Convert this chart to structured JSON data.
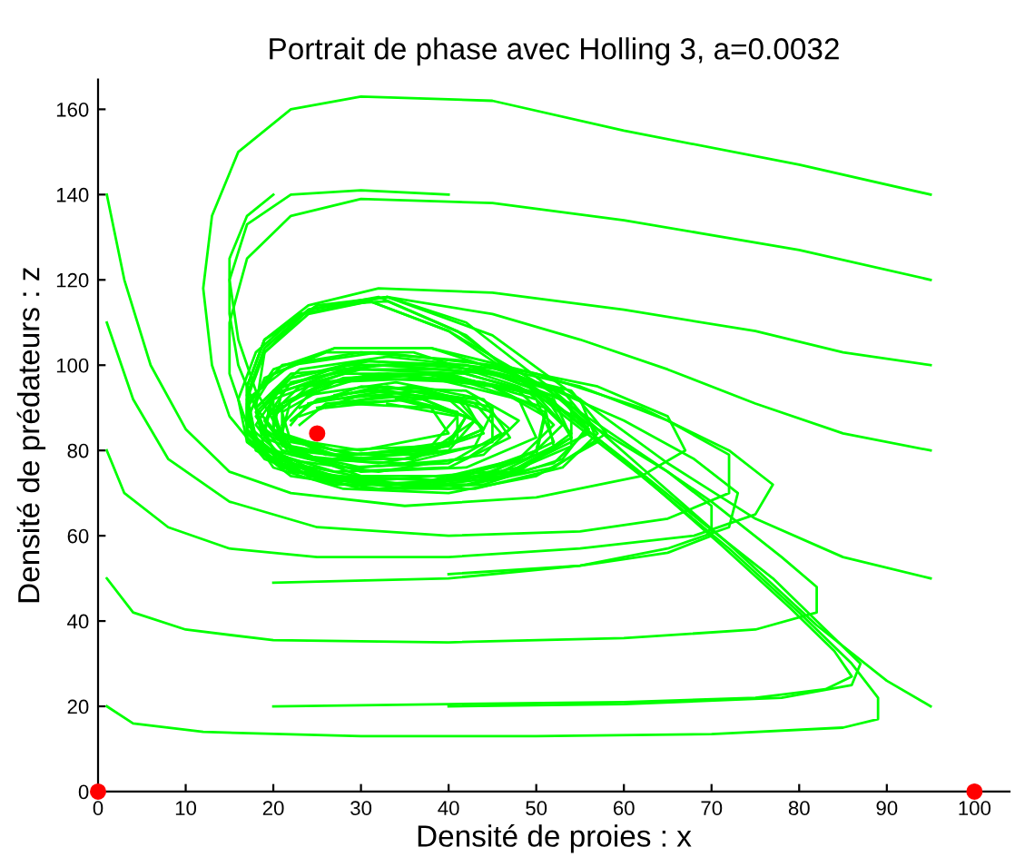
{
  "chart_data": {
    "type": "line",
    "title": "Portrait de phase avec Holling 3, a=0.0032",
    "xlabel": "Densité de proies : x",
    "ylabel": "Densité de prédateurs : z",
    "xlim": [
      0,
      104
    ],
    "ylim": [
      0,
      167
    ],
    "xticks": [
      0,
      10,
      20,
      30,
      40,
      50,
      60,
      70,
      80,
      90,
      100
    ],
    "yticks": [
      0,
      20,
      40,
      60,
      80,
      100,
      120,
      140,
      160
    ],
    "grid": false,
    "legend": false,
    "marker": "none",
    "line_style": "solid",
    "series": [
      {
        "color": "#00ff00",
        "x": [
          95,
          80,
          60,
          45,
          30,
          22,
          16,
          13,
          12,
          13,
          15,
          19,
          27,
          38,
          48,
          56,
          53,
          45,
          33,
          22,
          18,
          19,
          25,
          35,
          44,
          42,
          33,
          24,
          22
        ],
        "values": [
          140,
          147,
          155,
          162,
          163,
          160,
          150,
          135,
          118,
          100,
          88,
          78,
          72,
          72,
          76,
          84,
          92,
          98,
          100,
          98,
          90,
          83,
          78,
          78,
          84,
          91,
          94,
          91,
          86
        ]
      },
      {
        "color": "#00ff00",
        "x": [
          95,
          80,
          60,
          45,
          30,
          22,
          17,
          15,
          15,
          17,
          22,
          32,
          45,
          52,
          50,
          40,
          28,
          20,
          20,
          27,
          38,
          43,
          36,
          26,
          23
        ],
        "values": [
          120,
          127,
          134,
          138,
          139,
          135,
          125,
          110,
          98,
          86,
          77,
          73,
          75,
          82,
          92,
          98,
          98,
          92,
          84,
          79,
          80,
          87,
          93,
          91,
          86
        ]
      },
      {
        "color": "#00ff00",
        "x": [
          40,
          30,
          22,
          17,
          15,
          16,
          18,
          22,
          30,
          42,
          50,
          48,
          38,
          26,
          20,
          21,
          30,
          40,
          38,
          28
        ],
        "values": [
          140,
          141,
          140,
          133,
          120,
          106,
          94,
          80,
          75,
          76,
          83,
          92,
          97,
          96,
          90,
          83,
          80,
          84,
          90,
          91
        ]
      },
      {
        "color": "#00ff00",
        "x": [
          95,
          85,
          75,
          60,
          45,
          32,
          24,
          19,
          17,
          17,
          20,
          28,
          40,
          50,
          57,
          55,
          46,
          33,
          23,
          18,
          19,
          27,
          40,
          47,
          44,
          34,
          24,
          21
        ],
        "values": [
          100,
          103,
          108,
          113,
          117,
          118,
          114,
          106,
          95,
          85,
          76,
          71,
          70,
          74,
          82,
          92,
          99,
          102,
          99,
          90,
          80,
          75,
          76,
          83,
          92,
          96,
          93,
          86
        ]
      },
      {
        "color": "#00ff00",
        "x": [
          95,
          85,
          75,
          65,
          55,
          45,
          33,
          24,
          19,
          17,
          18,
          24,
          35,
          47,
          54,
          51,
          40,
          28,
          20,
          19,
          25,
          36,
          44,
          40,
          30,
          23
        ],
        "values": [
          80,
          84,
          91,
          99,
          106,
          112,
          116,
          113,
          104,
          93,
          82,
          74,
          71,
          74,
          83,
          93,
          99,
          99,
          93,
          84,
          78,
          78,
          85,
          92,
          93,
          88
        ]
      },
      {
        "color": "#00ff00",
        "x": [
          95,
          85,
          75,
          65,
          55,
          45,
          33,
          24,
          19,
          18,
          20,
          27,
          40,
          52,
          58,
          54,
          42,
          30,
          21,
          18,
          21,
          32,
          44,
          48,
          42,
          30,
          23
        ],
        "values": [
          50,
          55,
          64,
          77,
          92,
          107,
          116,
          113,
          103,
          90,
          80,
          73,
          71,
          76,
          84,
          94,
          100,
          100,
          95,
          86,
          78,
          75,
          79,
          87,
          94,
          95,
          90
        ]
      },
      {
        "color": "#00ff00",
        "x": [
          95,
          90,
          82,
          72,
          62,
          52,
          42,
          33,
          25,
          19,
          17,
          17,
          21,
          30,
          42,
          52,
          56,
          52,
          42,
          30,
          22,
          18,
          20,
          28,
          40,
          46,
          43,
          33,
          25,
          22
        ],
        "values": [
          20,
          26,
          39,
          58,
          76,
          94,
          110,
          116,
          114,
          106,
          95,
          85,
          77,
          72,
          72,
          77,
          85,
          94,
          100,
          101,
          97,
          89,
          80,
          76,
          77,
          84,
          91,
          95,
          92,
          87
        ]
      },
      {
        "color": "#00ff00",
        "x": [
          1,
          3,
          6,
          10,
          15,
          22,
          35,
          50,
          62,
          67,
          65,
          57,
          45,
          32,
          22,
          17,
          17,
          21,
          30,
          42,
          50,
          51,
          45,
          33,
          24,
          20,
          22,
          30,
          40,
          42,
          35,
          26
        ],
        "values": [
          140,
          120,
          100,
          85,
          75,
          70,
          67,
          69,
          74,
          80,
          88,
          95,
          100,
          103,
          100,
          92,
          83,
          76,
          72,
          73,
          79,
          88,
          95,
          98,
          95,
          88,
          81,
          78,
          81,
          88,
          92,
          90
        ]
      },
      {
        "color": "#00ff00",
        "x": [
          1,
          4,
          8,
          15,
          25,
          40,
          55,
          65,
          72,
          72,
          65,
          55,
          42,
          30,
          21,
          17,
          17,
          22,
          33,
          45,
          52,
          51,
          42,
          30,
          22,
          21,
          27,
          38,
          41,
          33
        ],
        "values": [
          110,
          92,
          78,
          68,
          62,
          60,
          61,
          64,
          70,
          79,
          87,
          95,
          101,
          103,
          100,
          91,
          82,
          75,
          72,
          74,
          81,
          90,
          96,
          97,
          92,
          84,
          80,
          81,
          88,
          91
        ]
      },
      {
        "color": "#00ff00",
        "x": [
          1,
          3,
          8,
          15,
          25,
          40,
          55,
          68,
          75,
          77,
          72,
          62,
          50,
          38,
          27,
          20,
          17,
          18,
          24,
          36,
          48,
          54,
          50,
          39,
          28,
          21,
          21,
          29,
          40,
          42,
          34
        ],
        "values": [
          80,
          70,
          62,
          57,
          55,
          55,
          57,
          60,
          65,
          72,
          80,
          90,
          98,
          104,
          104,
          99,
          90,
          80,
          74,
          72,
          75,
          84,
          93,
          98,
          97,
          91,
          83,
          79,
          81,
          88,
          92
        ]
      },
      {
        "color": "#00ff00",
        "x": [
          1,
          4,
          10,
          20,
          40,
          60,
          75,
          82,
          82,
          78,
          70,
          60,
          50,
          40,
          31,
          23,
          18,
          16,
          17,
          22,
          32,
          44,
          53,
          56,
          51,
          40,
          28,
          20,
          19,
          24,
          35,
          45,
          45,
          36,
          27
        ],
        "values": [
          50,
          42,
          38,
          35.5,
          35,
          36,
          38,
          42,
          48,
          55,
          68,
          82,
          96,
          108,
          115,
          112,
          103,
          92,
          82,
          74,
          71,
          72,
          78,
          86,
          95,
          100,
          100,
          94,
          85,
          78,
          77,
          82,
          90,
          95,
          93
        ]
      },
      {
        "color": "#00ff00",
        "x": [
          1,
          4,
          12,
          30,
          50,
          70,
          85,
          89,
          89,
          86,
          80,
          72,
          62,
          52,
          42,
          33,
          25,
          19,
          17,
          17,
          21,
          30,
          43,
          53,
          57,
          53,
          43,
          31,
          22,
          18,
          21,
          30,
          42,
          47,
          43,
          32,
          24
        ],
        "values": [
          20,
          16,
          14,
          13,
          13,
          13.5,
          15,
          17,
          22,
          30,
          42,
          57,
          74,
          90,
          107,
          115,
          114,
          106,
          95,
          84,
          76,
          71,
          71,
          76,
          84,
          94,
          99,
          101,
          97,
          88,
          80,
          76,
          78,
          85,
          92,
          95,
          91
        ]
      },
      {
        "color": "#00ff00",
        "x": [
          20,
          40,
          60,
          75,
          83,
          86,
          84,
          79,
          71,
          61,
          51,
          41,
          32,
          24,
          19,
          17,
          18,
          23,
          34,
          46,
          54,
          54,
          45,
          32,
          22,
          19,
          22,
          32,
          43,
          45,
          37,
          27
        ],
        "values": [
          20,
          20.5,
          21,
          22,
          24,
          27,
          33,
          43,
          58,
          76,
          93,
          108,
          116,
          113,
          104,
          93,
          83,
          75,
          72,
          74,
          81,
          91,
          98,
          100,
          96,
          87,
          79,
          77,
          81,
          89,
          94,
          92
        ]
      },
      {
        "color": "#00ff00",
        "x": [
          40,
          60,
          78,
          86,
          87,
          83,
          77,
          69,
          60,
          50,
          40,
          31,
          24,
          19,
          17,
          18,
          24,
          35,
          47,
          54,
          52,
          42,
          30,
          21,
          20,
          26,
          37,
          44,
          41,
          31
        ],
        "values": [
          20,
          20.5,
          22,
          25,
          30,
          38,
          50,
          63,
          78,
          94,
          108,
          115,
          112,
          103,
          92,
          82,
          75,
          72,
          75,
          83,
          92,
          98,
          99,
          94,
          85,
          79,
          79,
          85,
          92,
          94
        ]
      },
      {
        "color": "#00ff00",
        "x": [
          20,
          40,
          55,
          65,
          70,
          70,
          65,
          57,
          48,
          36,
          26,
          19,
          17,
          19,
          26,
          38,
          48,
          52,
          48,
          37,
          26,
          20,
          21,
          29,
          40,
          43,
          37,
          27
        ],
        "values": [
          49,
          50,
          53,
          56,
          60,
          67,
          75,
          85,
          95,
          103,
          103,
          97,
          87,
          79,
          74,
          73,
          78,
          86,
          94,
          98,
          96,
          89,
          81,
          78,
          80,
          87,
          92,
          91
        ]
      },
      {
        "color": "#00ff00",
        "x": [
          40,
          55,
          65,
          72,
          73,
          68,
          60,
          50,
          38,
          27,
          20,
          17,
          19,
          27,
          39,
          49,
          53,
          49,
          38,
          27,
          21,
          22,
          30,
          40,
          42
        ],
        "values": [
          51,
          53,
          57,
          62,
          70,
          78,
          87,
          96,
          104,
          104,
          98,
          88,
          79,
          74,
          73,
          78,
          86,
          94,
          98,
          96,
          89,
          82,
          79,
          82,
          88
        ]
      },
      {
        "color": "#00ff00",
        "x": [
          20,
          17,
          15,
          15,
          16,
          18,
          22,
          30,
          42,
          50,
          51,
          44,
          32,
          23,
          19,
          22,
          31,
          41,
          41,
          33,
          25
        ],
        "values": [
          140,
          135,
          125,
          112,
          100,
          90,
          80,
          74,
          74,
          80,
          89,
          96,
          98,
          95,
          87,
          80,
          78,
          82,
          89,
          93,
          90
        ]
      },
      {
        "type": "scatter",
        "color": "#ff0000",
        "marker": "circle",
        "x": [
          0,
          100,
          25
        ],
        "values": [
          0,
          0,
          84
        ]
      }
    ]
  }
}
